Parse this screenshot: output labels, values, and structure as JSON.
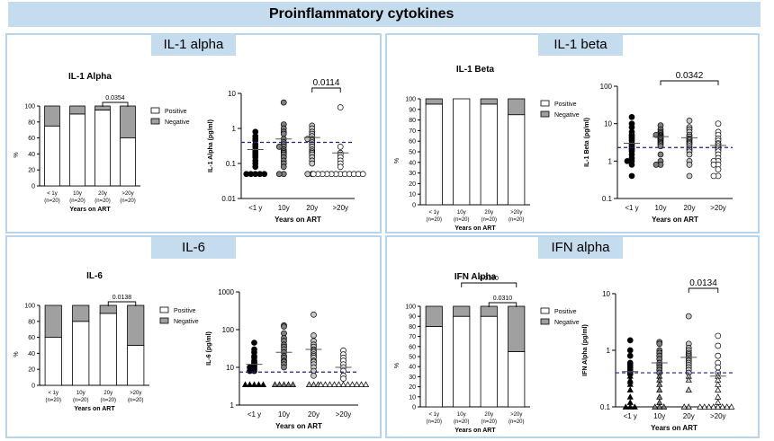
{
  "banner_title": "Proinflammatory cytokines",
  "panels": [
    {
      "id": "il1a",
      "header": "IL-1 alpha"
    },
    {
      "id": "il1b",
      "header": "IL-1 beta"
    },
    {
      "id": "il6",
      "header": "IL-6"
    },
    {
      "id": "ifna",
      "header": "IFN alpha"
    }
  ],
  "chart_data": [
    {
      "type": "bar",
      "panel": "il1a",
      "title": "IL-1 Alpha",
      "ylabel": "%",
      "xlabel": "Years on ART",
      "categories": [
        "< 1y\n(n=20)",
        "10y\n(n=20)",
        "20y\n(n=20)",
        ">20y\n(n=20)"
      ],
      "yticks": [
        0,
        20,
        40,
        60,
        80,
        100
      ],
      "ylim": [
        0,
        100
      ],
      "series": [
        {
          "name": "Positive",
          "values": [
            75,
            90,
            95,
            60
          ],
          "color": "#ffffff"
        },
        {
          "name": "Negative",
          "values": [
            25,
            10,
            5,
            40
          ],
          "color": "#a0a0a0"
        }
      ],
      "brackets": [
        {
          "from": 2,
          "to": 3,
          "label": "0.0354",
          "level": 0
        }
      ]
    },
    {
      "type": "scatter",
      "panel": "il1a",
      "ylabel": "IL-1 Alpha (pg/ml)",
      "xlabel": "Years on ART",
      "categories": [
        "<1 y",
        "10y",
        "20y",
        ">20y"
      ],
      "log": true,
      "ylim": [
        0.01,
        10
      ],
      "yticks": [
        {
          "v": 0.01,
          "label": "0.01"
        },
        {
          "v": 0.1,
          "label": "0.1"
        },
        {
          "v": 1,
          "label": "1"
        },
        {
          "v": 10,
          "label": "10"
        }
      ],
      "groups": [
        {
          "marker": "black",
          "values": [
            0.8,
            0.6,
            0.5,
            0.45,
            0.35,
            0.3,
            0.25,
            0.22,
            0.2,
            0.18,
            0.17,
            0.15,
            0.12,
            0.1,
            0.08,
            0.05,
            0.05,
            0.05,
            0.05,
            0.05
          ],
          "mean": 0.25
        },
        {
          "marker": "gray",
          "values": [
            5.5,
            1.3,
            1.0,
            0.8,
            0.7,
            0.5,
            0.4,
            0.35,
            0.3,
            0.3,
            0.25,
            0.22,
            0.2,
            0.18,
            0.15,
            0.12,
            0.1,
            0.08,
            0.05,
            0.05
          ],
          "mean": 0.5
        },
        {
          "marker": "lightgray",
          "values": [
            1.2,
            1.0,
            0.8,
            0.7,
            0.6,
            0.5,
            0.5,
            0.45,
            0.4,
            0.35,
            0.3,
            0.25,
            0.22,
            0.2,
            0.18,
            0.15,
            0.12,
            0.1,
            0.05,
            0.05
          ],
          "mean": 0.55
        },
        {
          "marker": "white",
          "values": [
            4.0,
            0.3,
            0.2,
            0.18,
            0.15,
            0.12,
            0.1,
            0.08,
            0.05,
            0.05,
            0.05,
            0.05,
            0.05,
            0.05,
            0.05,
            0.05,
            0.05,
            0.05,
            0.05,
            0.05
          ],
          "mean": 0.2
        }
      ],
      "refline": 0.4,
      "brackets": [
        {
          "from": 2,
          "to": 3,
          "label": "0.0114",
          "level": 0
        }
      ]
    },
    {
      "type": "bar",
      "panel": "il1b",
      "title": "IL-1 Beta",
      "ylabel": "%",
      "xlabel": "Years on ART",
      "categories": [
        "< 1y\n(n=20)",
        "10y\n(n=20)",
        "20y\n(n=20)",
        ">20y\n(n=20)"
      ],
      "yticks": [
        0,
        10,
        20,
        30,
        40,
        50,
        60,
        70,
        80,
        90,
        100
      ],
      "ylim": [
        0,
        100
      ],
      "series": [
        {
          "name": "Positive",
          "values": [
            95,
            100,
            95,
            85
          ],
          "color": "#ffffff"
        },
        {
          "name": "Negative",
          "values": [
            5,
            0,
            5,
            15
          ],
          "color": "#a0a0a0"
        }
      ],
      "brackets": []
    },
    {
      "type": "scatter",
      "panel": "il1b",
      "ylabel": "IL-1 Beta (pg/ml)",
      "xlabel": "Years on ART",
      "categories": [
        "<1 y",
        "10y",
        "20y",
        ">20y"
      ],
      "log": true,
      "ylim": [
        0.1,
        100
      ],
      "yticks": [
        {
          "v": 0.1,
          "label": "0.1"
        },
        {
          "v": 1,
          "label": "1"
        },
        {
          "v": 10,
          "label": "10"
        },
        {
          "v": 100,
          "label": "100"
        }
      ],
      "groups": [
        {
          "marker": "black",
          "values": [
            15,
            10,
            8,
            6,
            5,
            4.5,
            4,
            3.5,
            3,
            2.8,
            2.5,
            2.2,
            2,
            1.8,
            1.5,
            1.2,
            1,
            1,
            0.8,
            0.4
          ],
          "mean": 3.0
        },
        {
          "marker": "gray",
          "values": [
            9,
            7,
            6,
            5.5,
            5,
            5,
            4.8,
            4.5,
            4.2,
            4,
            3.8,
            3.5,
            3.2,
            3,
            2.8,
            2.5,
            1.5,
            1,
            0.8,
            0.8
          ],
          "mean": 4.5
        },
        {
          "marker": "lightgray",
          "values": [
            12,
            8,
            7,
            6,
            5,
            4.5,
            4,
            3.8,
            3.5,
            3.2,
            3,
            2.8,
            2.5,
            2.2,
            2,
            1.8,
            1.5,
            1,
            0.8,
            0.4
          ],
          "mean": 4.2
        },
        {
          "marker": "white",
          "values": [
            10,
            6,
            5,
            4,
            3.5,
            3,
            2.8,
            2.5,
            2.2,
            2,
            1.8,
            1.5,
            1.2,
            1,
            1,
            0.8,
            0.8,
            0.6,
            0.4,
            0.4
          ],
          "mean": 2.6
        }
      ],
      "refline": 2.3,
      "brackets": [
        {
          "from": 1,
          "to": 3,
          "label": "0.0342",
          "level": 0
        }
      ]
    },
    {
      "type": "bar",
      "panel": "il6",
      "title": "IL-6",
      "ylabel": "%",
      "xlabel": "Years on ART",
      "categories": [
        "< 1y\n(n=20)",
        "10y\n(n=20)",
        "20y\n(n=20)",
        ">20y\n(n=20)"
      ],
      "yticks": [
        0,
        20,
        40,
        60,
        80,
        100
      ],
      "ylim": [
        0,
        100
      ],
      "series": [
        {
          "name": "Positive",
          "values": [
            60,
            80,
            90,
            50
          ],
          "color": "#ffffff"
        },
        {
          "name": "Negative",
          "values": [
            40,
            20,
            10,
            50
          ],
          "color": "#a0a0a0"
        }
      ],
      "brackets": [
        {
          "from": 2,
          "to": 3,
          "label": "0.0138",
          "level": 0
        }
      ]
    },
    {
      "type": "scatter",
      "panel": "il6",
      "ylabel": "IL-6 (pg/ml)",
      "xlabel": "Years on ART",
      "categories": [
        "<1 y",
        "10y",
        "20y",
        ">20y"
      ],
      "log": true,
      "ylim": [
        1,
        1000
      ],
      "yticks": [
        {
          "v": 1,
          "label": "1"
        },
        {
          "v": 10,
          "label": "10"
        },
        {
          "v": 100,
          "label": "100"
        },
        {
          "v": 1000,
          "label": "1000"
        }
      ],
      "groups": [
        {
          "marker": "black",
          "values": [
            45,
            30,
            25,
            20,
            18,
            15,
            14,
            13,
            12,
            11,
            10,
            10,
            9,
            8,
            8,
            3.5,
            3.5,
            3.5,
            3.5,
            3.5
          ],
          "mean": 12
        },
        {
          "marker": "gray",
          "values": [
            130,
            120,
            80,
            60,
            50,
            40,
            35,
            30,
            25,
            20,
            18,
            15,
            14,
            12,
            10,
            3.5,
            3.5,
            3.5,
            3.5,
            3.5
          ],
          "mean": 25
        },
        {
          "marker": "lightgray",
          "values": [
            250,
            70,
            50,
            40,
            35,
            30,
            28,
            25,
            22,
            20,
            18,
            15,
            14,
            12,
            10,
            8,
            6,
            3.5,
            3.5,
            3.5
          ],
          "mean": 30
        },
        {
          "marker": "white",
          "values": [
            28,
            22,
            18,
            15,
            12,
            10,
            8,
            6,
            5,
            3.5,
            3.5,
            3.5,
            3.5,
            3.5,
            3.5,
            3.5,
            3.5,
            3.5,
            3.5,
            3.5
          ],
          "mean": 10
        }
      ],
      "refline": 7.5,
      "brackets": []
    },
    {
      "type": "bar",
      "panel": "ifna",
      "title": "IFN Alpha",
      "ylabel": "%",
      "xlabel": "Years on ART",
      "categories": [
        "< 1y\n(n=20)",
        "10y\n(n=20)",
        "20y\n(n=20)",
        ">20y\n(n=20)"
      ],
      "yticks": [
        0,
        10,
        20,
        30,
        40,
        50,
        60,
        70,
        80,
        90,
        100
      ],
      "ylim": [
        0,
        100
      ],
      "series": [
        {
          "name": "Positive",
          "values": [
            80,
            90,
            90,
            55
          ],
          "color": "#ffffff"
        },
        {
          "name": "Negative",
          "values": [
            20,
            10,
            10,
            45
          ],
          "color": "#a0a0a0"
        }
      ],
      "brackets": [
        {
          "from": 1,
          "to": 3,
          "label": "0.0310",
          "level": 1
        },
        {
          "from": 2,
          "to": 3,
          "label": "0.0310",
          "level": 0
        }
      ]
    },
    {
      "type": "scatter",
      "panel": "ifna",
      "ylabel": "IFN Alpha (pg/ml)",
      "xlabel": "Years on ART",
      "categories": [
        "<1 y",
        "10y",
        "20y",
        ">20y"
      ],
      "log": true,
      "ylim": [
        0.1,
        10
      ],
      "yticks": [
        {
          "v": 0.1,
          "label": "0.1"
        },
        {
          "v": 1,
          "label": "1"
        },
        {
          "v": 10,
          "label": "10"
        }
      ],
      "groups": [
        {
          "marker": "black",
          "values": [
            1.5,
            1.0,
            0.8,
            0.6,
            0.55,
            0.5,
            0.45,
            0.42,
            0.4,
            0.38,
            0.35,
            0.3,
            0.28,
            0.25,
            0.2,
            0.15,
            0.12,
            0.1,
            0.1,
            0.1
          ],
          "mean": 0.42
        },
        {
          "marker": "gray",
          "values": [
            1.4,
            1.3,
            1.0,
            0.9,
            0.8,
            0.7,
            0.6,
            0.55,
            0.5,
            0.45,
            0.4,
            0.35,
            0.3,
            0.25,
            0.2,
            0.15,
            0.12,
            0.1,
            0.1,
            0.1
          ],
          "mean": 0.6
        },
        {
          "marker": "lightgray",
          "values": [
            4.0,
            1.3,
            1.1,
            1.0,
            0.9,
            0.85,
            0.8,
            0.75,
            0.7,
            0.65,
            0.6,
            0.55,
            0.5,
            0.45,
            0.4,
            0.35,
            0.3,
            0.2,
            0.1,
            0.1
          ],
          "mean": 0.75
        },
        {
          "marker": "white",
          "values": [
            1.8,
            1.2,
            0.8,
            0.6,
            0.5,
            0.4,
            0.35,
            0.3,
            0.25,
            0.2,
            0.15,
            0.12,
            0.1,
            0.1,
            0.1,
            0.1,
            0.1,
            0.1,
            0.1,
            0.1
          ],
          "mean": 0.35
        }
      ],
      "refline": 0.4,
      "brackets": [
        {
          "from": 2,
          "to": 3,
          "label": "0.0134",
          "level": 0
        }
      ]
    }
  ]
}
